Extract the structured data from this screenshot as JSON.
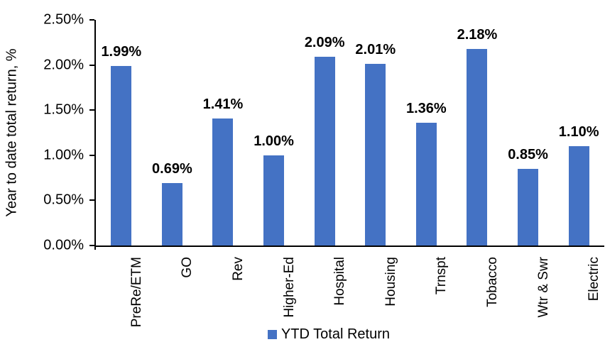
{
  "chart_data": {
    "type": "bar",
    "title": "",
    "ylabel": "Year to date total return, %",
    "xlabel": "",
    "categories": [
      "PreRe/ETM",
      "GO",
      "Rev",
      "Higher-Ed",
      "Hospital",
      "Housing",
      "Trnspt",
      "Tobacco",
      "Wtr & Swr",
      "Electric"
    ],
    "values": [
      1.99,
      0.69,
      1.41,
      1.0,
      2.09,
      2.01,
      1.36,
      2.18,
      0.85,
      1.1
    ],
    "data_labels": [
      "1.99%",
      "0.69%",
      "1.41%",
      "1.00%",
      "2.09%",
      "2.01%",
      "1.36%",
      "2.18%",
      "0.85%",
      "1.10%"
    ],
    "series_name": "YTD Total Return",
    "y_ticks": [
      {
        "label": "2.50%",
        "value": 2.5
      },
      {
        "label": "2.00%",
        "value": 2.0
      },
      {
        "label": "1.50%",
        "value": 1.5
      },
      {
        "label": "1.00%",
        "value": 1.0
      },
      {
        "label": "0.50%",
        "value": 0.5
      },
      {
        "label": "0.00%",
        "value": 0.0
      }
    ],
    "ylim": [
      0,
      2.5
    ],
    "grid": false,
    "legend_position": "bottom",
    "bar_color": "#4472C4",
    "axis_color": "#000000",
    "label_color": "#000000"
  }
}
